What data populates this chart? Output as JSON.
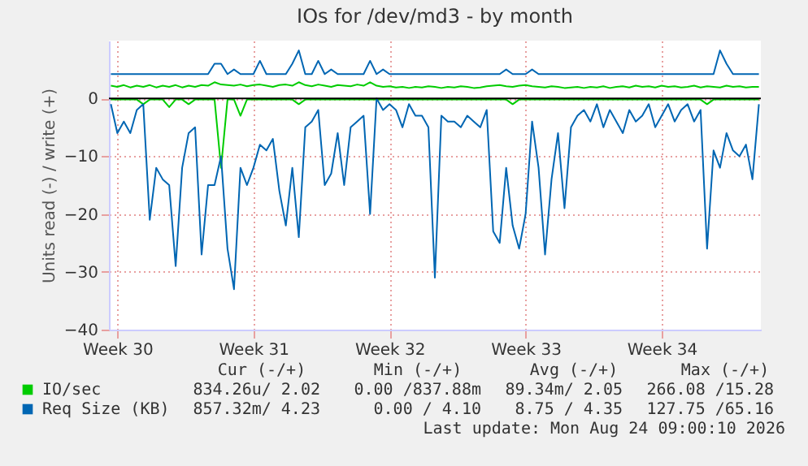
{
  "chart_data": {
    "type": "line",
    "title": "IOs for /dev/md3 - by month",
    "ylabel": "Units read (-) / write (+)",
    "categories": [
      null,
      "Week 30",
      null,
      null,
      null,
      null,
      null,
      null,
      null,
      null,
      null,
      null,
      null,
      null,
      null,
      null,
      null,
      null,
      null,
      null,
      null,
      null,
      "Week 31",
      null,
      null,
      null,
      null,
      null,
      null,
      null,
      null,
      null,
      null,
      null,
      null,
      null,
      null,
      null,
      null,
      null,
      null,
      null,
      null,
      "Week 32",
      null,
      null,
      null,
      null,
      null,
      null,
      null,
      null,
      null,
      null,
      null,
      null,
      null,
      null,
      null,
      null,
      null,
      null,
      null,
      null,
      "Week 33",
      null,
      null,
      null,
      null,
      null,
      null,
      null,
      null,
      null,
      null,
      null,
      null,
      null,
      null,
      null,
      null,
      null,
      null,
      null,
      null,
      "Week 34",
      null,
      null,
      null,
      null,
      null,
      null,
      null,
      null,
      null,
      null,
      null,
      null,
      null,
      null,
      null
    ],
    "series": [
      {
        "name": "IO/sec",
        "color": "#00cc00",
        "values": [
          2.2,
          2.0,
          2.3,
          1.9,
          2.2,
          2.0,
          2.3,
          1.9,
          2.2,
          2.0,
          2.3,
          1.9,
          2.2,
          2.0,
          2.3,
          2.2,
          2.8,
          2.4,
          2.3,
          2.2,
          2.4,
          2.1,
          2.3,
          2.4,
          2.2,
          2.0,
          2.3,
          2.4,
          2.2,
          2.8,
          2.3,
          2.1,
          2.4,
          2.2,
          2.0,
          2.3,
          2.2,
          2.1,
          2.4,
          2.2,
          2.8,
          2.2,
          2.0,
          2.1,
          1.9,
          2.0,
          1.8,
          2.0,
          1.9,
          2.1,
          2.0,
          1.8,
          2.0,
          1.9,
          2.1,
          2.0,
          1.8,
          1.9,
          2.1,
          2.2,
          2.3,
          2.1,
          2.0,
          2.2,
          2.3,
          2.1,
          2.0,
          1.9,
          2.1,
          2.0,
          1.8,
          1.9,
          2.0,
          1.8,
          2.0,
          1.9,
          2.1,
          1.8,
          2.0,
          2.1,
          1.9,
          2.2,
          2.0,
          2.1,
          1.9,
          2.2,
          2.0,
          2.1,
          1.9,
          2.0,
          2.2,
          1.9,
          2.1,
          2.0,
          1.9,
          2.2,
          2.0,
          2.1,
          1.9,
          2.0,
          2.0
        ]
      },
      {
        "color": "#00cc00",
        "values": [
          -0.2,
          -0.2,
          -0.2,
          -0.2,
          -0.2,
          -1,
          -0.2,
          -0.2,
          -0.2,
          -1.5,
          -0.2,
          -0.2,
          -1,
          -0.2,
          -0.2,
          -0.2,
          -0.2,
          -12,
          -0.2,
          -0.2,
          -3,
          -0.2,
          -0.2,
          -0.2,
          -0.2,
          -0.2,
          -0.2,
          -0.2,
          -0.2,
          -1,
          -0.2,
          -0.2,
          -0.2,
          -0.2,
          -0.2,
          -0.2,
          -0.2,
          -0.2,
          -0.2,
          -0.2,
          -0.2,
          -0.2,
          -0.2,
          -0.2,
          -0.2,
          -0.2,
          -0.2,
          -0.2,
          -0.2,
          -0.2,
          -0.2,
          -0.2,
          -0.2,
          -0.2,
          -0.2,
          -0.2,
          -0.2,
          -0.2,
          -0.2,
          -0.2,
          -0.2,
          -0.2,
          -1,
          -0.2,
          -0.2,
          -0.2,
          -0.2,
          -0.2,
          -0.2,
          -0.2,
          -0.2,
          -0.2,
          -0.2,
          -0.2,
          -0.2,
          -0.2,
          -0.2,
          -0.2,
          -0.2,
          -0.2,
          -0.2,
          -0.2,
          -0.2,
          -0.2,
          -0.2,
          -0.2,
          -0.2,
          -0.2,
          -0.2,
          -0.2,
          -0.2,
          -0.2,
          -1,
          -0.2,
          -0.2,
          -0.2,
          -0.2,
          -0.2,
          -0.2,
          -0.2,
          -0.2
        ]
      },
      {
        "name": "Req Size (KB)",
        "color": "#0066b3",
        "values": [
          4.2,
          4.2,
          4.2,
          4.2,
          4.2,
          4.2,
          4.2,
          4.2,
          4.2,
          4.2,
          4.2,
          4.2,
          4.2,
          4.2,
          4.2,
          4.2,
          6,
          6,
          4.2,
          5,
          4.2,
          4.2,
          4.2,
          6.5,
          4.2,
          4.2,
          4.2,
          4.2,
          6,
          8.3,
          4.2,
          4.2,
          6.5,
          4.2,
          5,
          4.2,
          4.2,
          4.2,
          4.2,
          4.2,
          6.5,
          4.2,
          5,
          4.2,
          4.2,
          4.2,
          4.2,
          4.2,
          4.2,
          4.2,
          4.2,
          4.2,
          4.2,
          4.2,
          4.2,
          4.2,
          4.2,
          4.2,
          4.2,
          4.2,
          4.2,
          5,
          4.2,
          4.2,
          4.2,
          5,
          4.2,
          4.2,
          4.2,
          4.2,
          4.2,
          4.2,
          4.2,
          4.2,
          4.2,
          4.2,
          4.2,
          4.2,
          4.2,
          4.2,
          4.2,
          4.2,
          4.2,
          4.2,
          4.2,
          4.2,
          4.2,
          4.2,
          4.2,
          4.2,
          4.2,
          4.2,
          4.2,
          4.2,
          8.3,
          6,
          4.2,
          4.2,
          4.2,
          4.2,
          4.2
        ]
      },
      {
        "color": "#0066b3",
        "values": [
          -1,
          -6,
          -4,
          -6,
          -2,
          -1,
          -21,
          -12,
          -14,
          -15,
          -29,
          -12,
          -6,
          -5,
          -27,
          -15,
          -15,
          -10,
          -26,
          -33,
          -12,
          -15,
          -12,
          -8,
          -9,
          -7,
          -16,
          -22,
          -12,
          -24,
          -5,
          -4,
          -2,
          -15,
          -13,
          -6,
          -15,
          -5,
          -4,
          -3,
          -20,
          0,
          -2,
          -1,
          -2,
          -5,
          -1,
          -3,
          -3,
          -5,
          -31,
          -3,
          -4,
          -4,
          -5,
          -3,
          -4,
          -5,
          -2,
          -23,
          -25,
          -12,
          -22,
          -26,
          -20,
          -4,
          -12,
          -27,
          -14,
          -6,
          -19,
          -5,
          -3,
          -2,
          -4,
          -1,
          -5,
          -2,
          -4,
          -6,
          -2,
          -4,
          -3,
          -1,
          -5,
          -3,
          -1,
          -4,
          -2,
          -1,
          -4,
          -2,
          -26,
          -9,
          -12,
          -6,
          -9,
          -10,
          -8,
          -14,
          -1
        ]
      }
    ],
    "ylim": [
      -40,
      10
    ],
    "yticks": [
      -40,
      -30,
      -20,
      -10,
      0
    ],
    "ref_lines": [
      {
        "axis": "y",
        "value": 0,
        "color": "#000000"
      }
    ],
    "grid": true,
    "legend": "bottom",
    "annotations": [
      "Cur (-/+)",
      "Min (-/+)",
      "Avg (-/+)",
      "Max (-/+)",
      "834.26u/ 2.02",
      "0.00 /837.88m",
      "89.34m/ 2.05",
      "266.08 /15.28",
      "857.32m/ 4.23",
      "0.00 / 4.10",
      "8.75 / 4.35",
      "127.75 /65.16",
      "Last update: Mon Aug 24 09:00:10 2026"
    ]
  }
}
